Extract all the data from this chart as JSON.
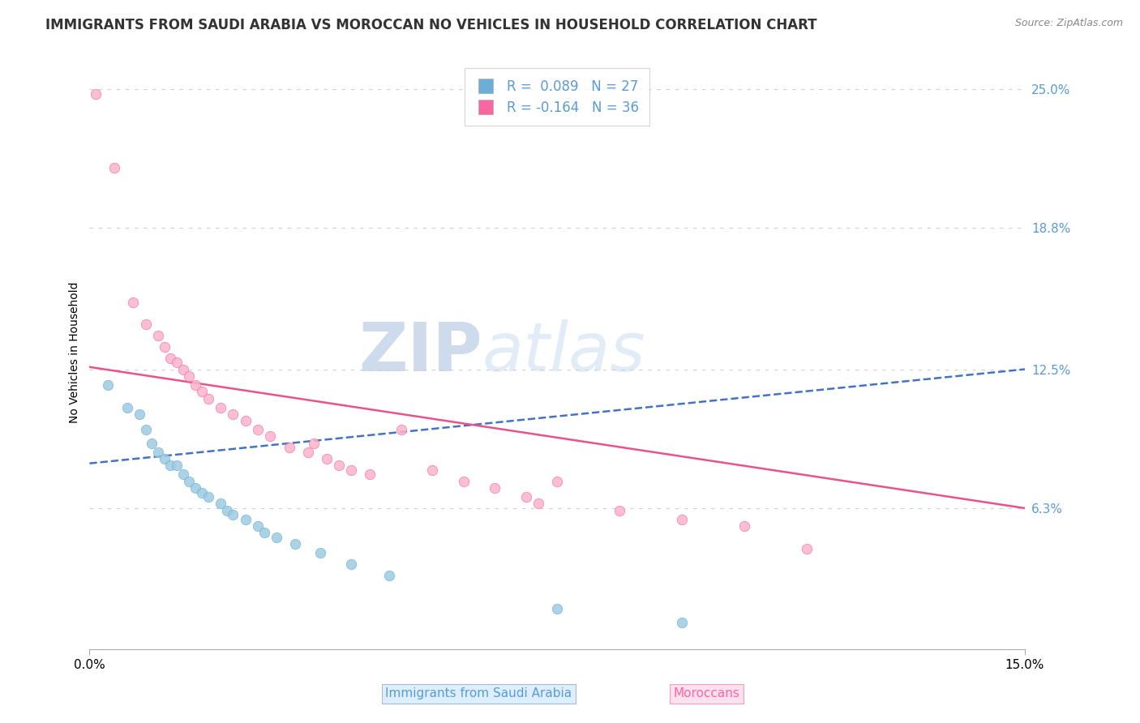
{
  "title": "IMMIGRANTS FROM SAUDI ARABIA VS MOROCCAN NO VEHICLES IN HOUSEHOLD CORRELATION CHART",
  "source": "Source: ZipAtlas.com",
  "ylabel": "No Vehicles in Household",
  "xlim": [
    0.0,
    0.15
  ],
  "ylim": [
    0.0,
    0.265
  ],
  "yticks": [
    0.063,
    0.125,
    0.188,
    0.25
  ],
  "ytick_labels": [
    "6.3%",
    "12.5%",
    "18.8%",
    "25.0%"
  ],
  "xticks": [
    0.0,
    0.15
  ],
  "xtick_labels": [
    "0.0%",
    "15.0%"
  ],
  "legend_r1": "R =  0.089   N = 27",
  "legend_r2": "R = -0.164   N = 36",
  "legend_color1": "#6baed6",
  "legend_color2": "#f768a1",
  "series_blue": {
    "color": "#9ecae1",
    "edgecolor": "#6baed6",
    "alpha": 0.85,
    "size": 80,
    "x": [
      0.003,
      0.006,
      0.008,
      0.009,
      0.01,
      0.011,
      0.012,
      0.013,
      0.014,
      0.015,
      0.016,
      0.017,
      0.018,
      0.019,
      0.021,
      0.022,
      0.023,
      0.025,
      0.027,
      0.028,
      0.03,
      0.033,
      0.037,
      0.042,
      0.048,
      0.075,
      0.095
    ],
    "y": [
      0.118,
      0.108,
      0.105,
      0.098,
      0.092,
      0.088,
      0.085,
      0.082,
      0.082,
      0.078,
      0.075,
      0.072,
      0.07,
      0.068,
      0.065,
      0.062,
      0.06,
      0.058,
      0.055,
      0.052,
      0.05,
      0.047,
      0.043,
      0.038,
      0.033,
      0.018,
      0.012
    ]
  },
  "series_pink": {
    "color": "#fbb4c9",
    "edgecolor": "#f768a1",
    "alpha": 0.85,
    "size": 80,
    "x": [
      0.001,
      0.004,
      0.007,
      0.009,
      0.011,
      0.012,
      0.013,
      0.014,
      0.015,
      0.016,
      0.017,
      0.018,
      0.019,
      0.021,
      0.023,
      0.025,
      0.027,
      0.029,
      0.032,
      0.035,
      0.036,
      0.038,
      0.04,
      0.042,
      0.045,
      0.05,
      0.055,
      0.06,
      0.065,
      0.07,
      0.072,
      0.075,
      0.085,
      0.095,
      0.105,
      0.115
    ],
    "y": [
      0.248,
      0.215,
      0.155,
      0.145,
      0.14,
      0.135,
      0.13,
      0.128,
      0.125,
      0.122,
      0.118,
      0.115,
      0.112,
      0.108,
      0.105,
      0.102,
      0.098,
      0.095,
      0.09,
      0.088,
      0.092,
      0.085,
      0.082,
      0.08,
      0.078,
      0.098,
      0.08,
      0.075,
      0.072,
      0.068,
      0.065,
      0.075,
      0.062,
      0.058,
      0.055,
      0.045
    ]
  },
  "trendline_blue": {
    "color": "#4472c4",
    "linestyle": "--",
    "linewidth": 1.8,
    "x_start": 0.0,
    "x_end": 0.15,
    "y_start": 0.083,
    "y_end": 0.125
  },
  "trendline_pink": {
    "color": "#e8538a",
    "linestyle": "-",
    "linewidth": 1.8,
    "x_start": 0.0,
    "x_end": 0.15,
    "y_start": 0.126,
    "y_end": 0.063
  },
  "grid_color": "#d0d0d0",
  "grid_linestyle": "--",
  "watermark_zip": "ZIP",
  "watermark_atlas": "atlas",
  "background_color": "#ffffff",
  "title_fontsize": 12,
  "axis_label_fontsize": 10,
  "tick_label_fontsize": 11,
  "legend_fontsize": 12
}
